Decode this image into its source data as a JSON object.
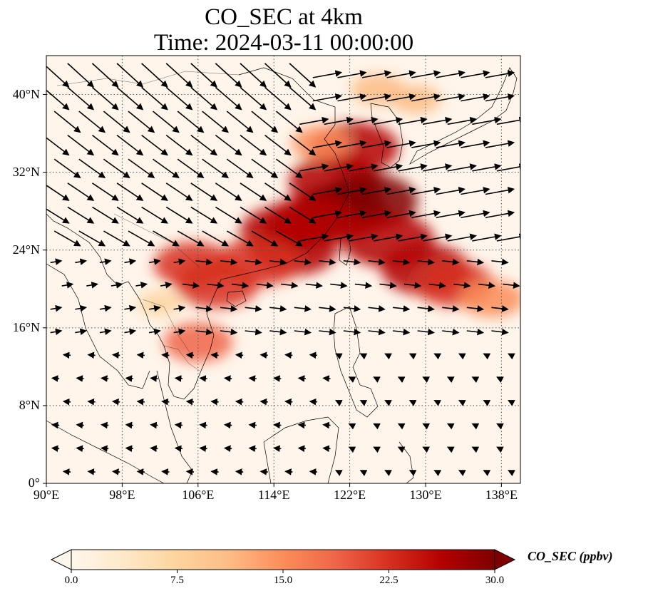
{
  "title_line1": "CO_SEC at 4km",
  "title_line2": "Time: 2024-03-11 00:00:00",
  "map": {
    "lon_range": [
      90,
      140
    ],
    "lat_range": [
      0,
      44
    ],
    "lon_ticks": [
      {
        "value": 90,
        "label": "90°E"
      },
      {
        "value": 98,
        "label": "98°E"
      },
      {
        "value": 106,
        "label": "106°E"
      },
      {
        "value": 114,
        "label": "114°E"
      },
      {
        "value": 122,
        "label": "122°E"
      },
      {
        "value": 130,
        "label": "130°E"
      },
      {
        "value": 138,
        "label": "138°E"
      }
    ],
    "lat_ticks": [
      {
        "value": 0,
        "label": "0°"
      },
      {
        "value": 8,
        "label": "8°N"
      },
      {
        "value": 16,
        "label": "16°N"
      },
      {
        "value": 24,
        "label": "24°N"
      },
      {
        "value": 32,
        "label": "32°N"
      },
      {
        "value": 40,
        "label": "40°N"
      }
    ],
    "gridlines": "dotted"
  },
  "colorbar": {
    "label": "CO_SEC (ppbv)",
    "ticks": [
      "0.0",
      "7.5",
      "15.0",
      "22.5",
      "30.0"
    ],
    "range": [
      0,
      30
    ],
    "colormap": "OrRd",
    "colors": [
      "#fff7ec",
      "#fee8c8",
      "#fdd49e",
      "#fdbb84",
      "#fc8d59",
      "#ef6548",
      "#d7301f",
      "#b30000",
      "#7f0000"
    ]
  },
  "plume": [
    {
      "lon": 122.5,
      "lat": 34.5,
      "val": 26
    },
    {
      "lon": 120.5,
      "lat": 31.0,
      "val": 28
    },
    {
      "lon": 124.0,
      "lat": 29.0,
      "val": 30
    },
    {
      "lon": 121.0,
      "lat": 28.0,
      "val": 29
    },
    {
      "lon": 118.0,
      "lat": 27.0,
      "val": 27
    },
    {
      "lon": 115.0,
      "lat": 26.0,
      "val": 25
    },
    {
      "lon": 116.0,
      "lat": 24.0,
      "val": 26
    },
    {
      "lon": 112.5,
      "lat": 22.8,
      "val": 24
    },
    {
      "lon": 126.0,
      "lat": 25.0,
      "val": 28
    },
    {
      "lon": 130.0,
      "lat": 22.0,
      "val": 26
    },
    {
      "lon": 133.0,
      "lat": 20.5,
      "val": 22
    },
    {
      "lon": 137.0,
      "lat": 19.0,
      "val": 16
    },
    {
      "lon": 108.0,
      "lat": 20.5,
      "val": 24
    },
    {
      "lon": 105.5,
      "lat": 22.5,
      "val": 22
    },
    {
      "lon": 119.0,
      "lat": 35.0,
      "val": 14
    },
    {
      "lon": 125.0,
      "lat": 40.5,
      "val": 12
    },
    {
      "lon": 129.0,
      "lat": 39.5,
      "val": 10
    },
    {
      "lon": 106.0,
      "lat": 14.5,
      "val": 18
    },
    {
      "lon": 102.0,
      "lat": 18.5,
      "val": 8
    }
  ]
}
